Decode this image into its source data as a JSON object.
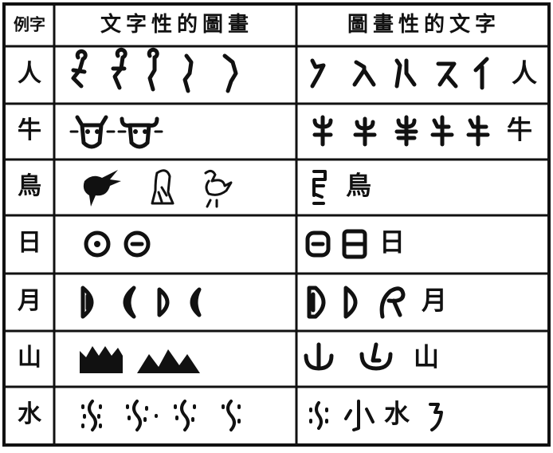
{
  "header": {
    "example": "例字",
    "picture_writing": "文字性的圖畫",
    "pictographic_script": "圖畫性的文字"
  },
  "rows": [
    {
      "label": "人",
      "modern": "人"
    },
    {
      "label": "牛",
      "modern": "牛"
    },
    {
      "label": "鳥",
      "modern": "鳥"
    },
    {
      "label": "日",
      "modern": "日"
    },
    {
      "label": "月",
      "modern": "月"
    },
    {
      "label": "山",
      "modern": "山"
    },
    {
      "label": "水",
      "modern": "水"
    }
  ]
}
